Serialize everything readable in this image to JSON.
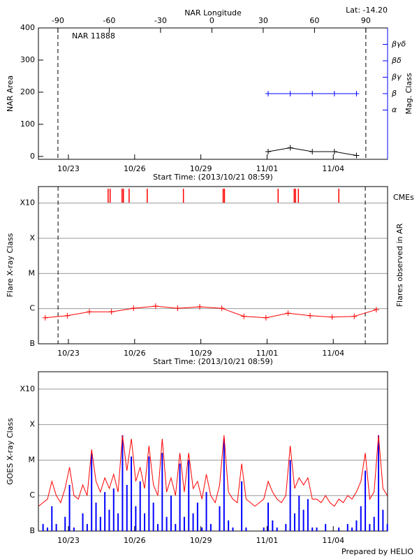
{
  "footer": "Prepared by HELIO",
  "chart_data": [
    {
      "type": "line",
      "title": "NAR 11888",
      "annotation": "Lat: -14.20",
      "xlabel": "Start Time: (2013/10/21 08:59)",
      "ylabel": "NAR Area",
      "x2label": "NAR Longitude",
      "y2label": "Mag. Class",
      "y2color": "#0000ff",
      "xlim": [
        0.64,
        16.46
      ],
      "xticks": [
        {
          "value": 2,
          "label": "10/23"
        },
        {
          "value": 5,
          "label": "10/26"
        },
        {
          "value": 8,
          "label": "10/29"
        },
        {
          "value": 11,
          "label": "11/01"
        },
        {
          "value": 14,
          "label": "11/04"
        }
      ],
      "x2lim": [
        -101.4,
        102.7
      ],
      "x2ticks": [
        -90,
        -60,
        -30,
        0,
        30,
        60,
        90
      ],
      "ylim": [
        -9,
        400
      ],
      "yticks": [
        0,
        100,
        200,
        300,
        400
      ],
      "y2lim": [
        -2,
        6
      ],
      "y2ticks": [
        {
          "value": 1,
          "label": "α"
        },
        {
          "value": 2,
          "label": "β"
        },
        {
          "value": 3,
          "label": "βγ"
        },
        {
          "value": 4,
          "label": "βδ"
        },
        {
          "value": 5,
          "label": "βγδ"
        }
      ],
      "limb_longitudes": [
        -90,
        90
      ],
      "series": [
        {
          "color": "#000000",
          "marker": "+",
          "x": [
            11.05,
            12.05,
            13.05,
            14.05,
            15.05
          ],
          "values": [
            15,
            27,
            15,
            15,
            3
          ]
        },
        {
          "color": "#0000ff",
          "marker": "+",
          "axis": "y2",
          "x": [
            11.05,
            12.05,
            13.05,
            14.05,
            15.05
          ],
          "values": [
            2,
            2,
            2,
            2,
            2
          ]
        }
      ]
    },
    {
      "type": "line",
      "xlabel": "Start Time: (2013/10/21 08:59)",
      "ylabel": "Flare X-ray Class",
      "y2label": "Flares observed in AR",
      "cme_label": "CMEs",
      "cme_color": "#ff0000",
      "cme_times": [
        3.8,
        3.89,
        4.43,
        4.49,
        4.75,
        5.57,
        7.21,
        9.01,
        9.07,
        11.5,
        12.23,
        12.29,
        12.42,
        14.25
      ],
      "limb_times": [
        1.53,
        15.45
      ],
      "xlim": [
        0.64,
        16.46
      ],
      "xticks": [
        {
          "value": 2,
          "label": "10/23"
        },
        {
          "value": 5,
          "label": "10/26"
        },
        {
          "value": 8,
          "label": "10/29"
        },
        {
          "value": 11,
          "label": "11/01"
        },
        {
          "value": 14,
          "label": "11/04"
        }
      ],
      "ylim": [
        -7,
        -2.53
      ],
      "yticks": [
        {
          "value": -7,
          "label": "B"
        },
        {
          "value": -6,
          "label": "C"
        },
        {
          "value": -5,
          "label": "M"
        },
        {
          "value": -4,
          "label": "X"
        },
        {
          "value": -3,
          "label": "X10"
        }
      ],
      "grid": true,
      "series": [
        {
          "color": "#ff0000",
          "marker": "+",
          "x": [
            0.95,
            1.95,
            2.95,
            3.95,
            4.95,
            5.95,
            6.95,
            7.95,
            8.95,
            9.95,
            10.95,
            11.95,
            12.95,
            13.95,
            14.95,
            15.95
          ],
          "values": [
            -6.26,
            -6.2,
            -6.09,
            -6.09,
            -5.99,
            -5.93,
            -5.99,
            -5.95,
            -5.99,
            -6.22,
            -6.26,
            -6.13,
            -6.2,
            -6.24,
            -6.22,
            -6.03
          ]
        }
      ]
    },
    {
      "type": "line",
      "ylabel": "GOES X-ray Class",
      "xlim": [
        0.64,
        16.46
      ],
      "xticks": [
        {
          "value": 2,
          "label": "10/23"
        },
        {
          "value": 5,
          "label": "10/26"
        },
        {
          "value": 8,
          "label": "10/29"
        },
        {
          "value": 11,
          "label": "11/01"
        },
        {
          "value": 14,
          "label": "11/04"
        }
      ],
      "ylim": [
        -7,
        -2.51
      ],
      "yticks": [
        {
          "value": -7,
          "label": "B"
        },
        {
          "value": -6,
          "label": "C"
        },
        {
          "value": -5,
          "label": "M"
        },
        {
          "value": -4,
          "label": "X"
        },
        {
          "value": -3,
          "label": "X10"
        }
      ],
      "grid": true,
      "x": [
        0.65,
        0.85,
        1.05,
        1.25,
        1.45,
        1.65,
        1.85,
        2.05,
        2.25,
        2.45,
        2.65,
        2.85,
        3.05,
        3.25,
        3.45,
        3.65,
        3.85,
        4.05,
        4.25,
        4.45,
        4.65,
        4.85,
        5.05,
        5.25,
        5.45,
        5.65,
        5.85,
        6.05,
        6.25,
        6.45,
        6.65,
        6.85,
        7.05,
        7.25,
        7.45,
        7.65,
        7.85,
        8.05,
        8.25,
        8.45,
        8.65,
        8.85,
        9.05,
        9.25,
        9.45,
        9.65,
        9.85,
        10.05,
        10.25,
        10.45,
        10.65,
        10.85,
        11.05,
        11.25,
        11.45,
        11.65,
        11.85,
        12.05,
        12.25,
        12.45,
        12.65,
        12.85,
        13.05,
        13.25,
        13.45,
        13.65,
        13.85,
        14.05,
        14.25,
        14.45,
        14.65,
        14.85,
        15.05,
        15.25,
        15.45,
        15.65,
        15.85,
        16.05,
        16.25,
        16.45
      ],
      "series": [
        {
          "color": "#0000ff",
          "mark": "bar",
          "values": [
            -7.0,
            -6.8,
            -6.9,
            -6.3,
            -6.8,
            -7.0,
            -6.6,
            -5.7,
            -6.9,
            -7.0,
            -6.5,
            -6.8,
            -4.8,
            -6.2,
            -6.6,
            -5.9,
            -6.4,
            -5.8,
            -6.5,
            -4.3,
            -5.7,
            -4.9,
            -6.3,
            -5.6,
            -6.5,
            -4.9,
            -6.2,
            -6.8,
            -4.8,
            -6.6,
            -6.0,
            -6.8,
            -5.1,
            -6.6,
            -5.0,
            -6.5,
            -6.2,
            -6.9,
            -5.9,
            -6.8,
            -7.0,
            -6.3,
            -4.4,
            -6.7,
            -6.9,
            -7.0,
            -5.6,
            -6.9,
            -7.0,
            -7.0,
            -7.0,
            -6.9,
            -6.2,
            -6.7,
            -6.9,
            -7.0,
            -6.8,
            -5.0,
            -6.5,
            -6.0,
            -6.4,
            -6.1,
            -6.9,
            -6.9,
            -7.0,
            -6.8,
            -7.0,
            -7.0,
            -6.9,
            -7.0,
            -6.8,
            -6.9,
            -6.7,
            -6.3,
            -5.3,
            -6.8,
            -6.6,
            -4.3,
            -6.4,
            -6.8
          ]
        },
        {
          "color": "#ff0000",
          "mark": "line",
          "values": [
            -6.3,
            -6.2,
            -6.1,
            -5.6,
            -6.0,
            -6.2,
            -5.8,
            -5.2,
            -6.0,
            -6.1,
            -5.7,
            -6.0,
            -4.7,
            -5.6,
            -5.9,
            -5.5,
            -5.8,
            -5.4,
            -5.9,
            -4.3,
            -5.3,
            -4.4,
            -5.6,
            -5.2,
            -5.8,
            -4.6,
            -5.7,
            -6.0,
            -4.4,
            -5.9,
            -5.5,
            -6.0,
            -4.8,
            -5.9,
            -4.8,
            -5.8,
            -5.6,
            -6.1,
            -5.4,
            -6.0,
            -6.2,
            -5.7,
            -4.3,
            -5.9,
            -6.1,
            -6.2,
            -5.1,
            -6.1,
            -6.2,
            -6.3,
            -6.2,
            -6.1,
            -5.6,
            -5.9,
            -6.1,
            -6.2,
            -6.0,
            -4.6,
            -5.8,
            -5.5,
            -5.7,
            -5.5,
            -6.1,
            -6.1,
            -6.2,
            -6.0,
            -6.2,
            -6.3,
            -6.1,
            -6.2,
            -6.0,
            -6.1,
            -5.9,
            -5.6,
            -4.8,
            -6.1,
            -5.9,
            -4.3,
            -5.8,
            -6.0
          ]
        }
      ]
    }
  ]
}
